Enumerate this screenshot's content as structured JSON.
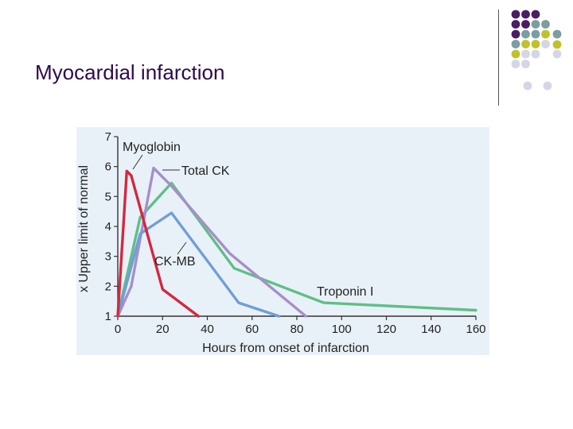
{
  "slide": {
    "title": "Myocardial infarction"
  },
  "decor": {
    "dot_colors": {
      "purple": "#4b1e63",
      "teal": "#7a9ea1",
      "olive": "#c1c22b",
      "lavender": "#d5d5e6"
    }
  },
  "chart_data": {
    "type": "line",
    "xlabel": "Hours from onset of infarction",
    "ylabel": "x Upper limit of normal",
    "xlim": [
      0,
      160
    ],
    "ylim": [
      1,
      7
    ],
    "x_ticks": [
      0,
      20,
      40,
      60,
      80,
      100,
      120,
      140,
      160
    ],
    "y_ticks": [
      1,
      2,
      3,
      4,
      5,
      6,
      7
    ],
    "grid": false,
    "series": [
      {
        "name": "Myoglobin",
        "color": "#d62740",
        "points": [
          [
            0,
            1
          ],
          [
            4,
            5.85
          ],
          [
            6,
            5.7
          ],
          [
            20,
            1.9
          ],
          [
            36,
            1
          ]
        ]
      },
      {
        "name": "Total CK",
        "color": "#a78fc9",
        "points": [
          [
            0,
            1
          ],
          [
            6,
            2.0
          ],
          [
            16,
            5.95
          ],
          [
            24,
            5.35
          ],
          [
            50,
            3.1
          ],
          [
            84,
            1
          ]
        ]
      },
      {
        "name": "CK-MB",
        "color": "#6f9fd6",
        "points": [
          [
            0,
            1
          ],
          [
            10,
            3.75
          ],
          [
            24,
            4.45
          ],
          [
            54,
            1.45
          ],
          [
            72,
            1
          ]
        ]
      },
      {
        "name": "Troponin I",
        "color": "#5fbf87",
        "points": [
          [
            0,
            1
          ],
          [
            10,
            4.3
          ],
          [
            24,
            5.45
          ],
          [
            52,
            2.6
          ],
          [
            92,
            1.45
          ],
          [
            160,
            1.2
          ]
        ]
      }
    ],
    "annotations": [
      {
        "text": "Myoglobin",
        "series": "Myoglobin"
      },
      {
        "text": "Total CK",
        "series": "Total CK"
      },
      {
        "text": "CK-MB",
        "series": "CK-MB"
      },
      {
        "text": "Troponin I",
        "series": "Troponin I"
      }
    ]
  }
}
